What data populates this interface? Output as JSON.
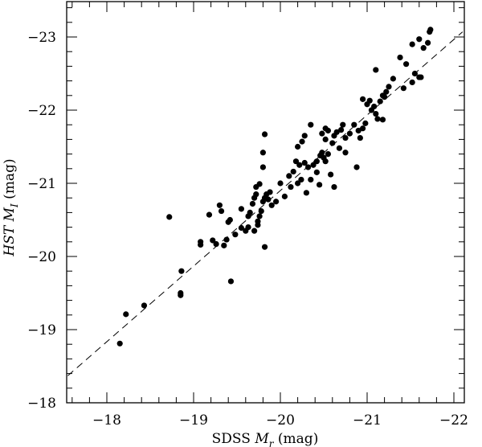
{
  "chart_data": {
    "type": "scatter",
    "title": "",
    "xlabel": "SDSS M_r (mag)",
    "xlabel_parts": {
      "prefix": "SDSS ",
      "var": "M",
      "sub": "r",
      "suffix": " (mag)"
    },
    "ylabel": "HST M_I (mag)",
    "ylabel_parts": {
      "prefix": "HST",
      "var": " M",
      "sub": "I",
      "suffix": " (mag)"
    },
    "xlim": [
      -17.55,
      -22.1
    ],
    "ylim": [
      -18.0,
      -23.48
    ],
    "x_ticks": [
      -18,
      -19,
      -20,
      -21,
      -22
    ],
    "x_tick_labels": [
      "−18",
      "−19",
      "−20",
      "−21",
      "−22"
    ],
    "y_ticks": [
      -18,
      -19,
      -20,
      -21,
      -22,
      -23
    ],
    "y_tick_labels": [
      "−18",
      "−19",
      "−20",
      "−21",
      "−22",
      "−23"
    ],
    "x_minor_step": 0.2,
    "y_minor_step": 0.2,
    "grid": false,
    "legend": null,
    "reference_line": {
      "style": "dashed",
      "description": "one-to-one relation",
      "x": [
        -17.55,
        -22.1
      ],
      "y": [
        -18.37,
        -23.07
      ]
    },
    "marker": {
      "shape": "circle",
      "color": "#000000",
      "radius": 3.6
    },
    "points": [
      [
        -18.15,
        -18.81
      ],
      [
        -18.22,
        -19.21
      ],
      [
        -18.43,
        -19.33
      ],
      [
        -18.85,
        -19.47
      ],
      [
        -18.85,
        -19.5
      ],
      [
        -18.86,
        -19.8
      ],
      [
        -18.72,
        -20.54
      ],
      [
        -19.43,
        -19.66
      ],
      [
        -19.82,
        -20.13
      ],
      [
        -19.08,
        -20.16
      ],
      [
        -19.08,
        -20.2
      ],
      [
        -19.22,
        -20.22
      ],
      [
        -19.26,
        -20.17
      ],
      [
        -19.35,
        -20.15
      ],
      [
        -19.38,
        -20.23
      ],
      [
        -19.4,
        -20.47
      ],
      [
        -19.42,
        -20.5
      ],
      [
        -19.3,
        -20.7
      ],
      [
        -19.32,
        -20.62
      ],
      [
        -19.18,
        -20.57
      ],
      [
        -19.48,
        -20.3
      ],
      [
        -19.55,
        -20.39
      ],
      [
        -19.6,
        -20.35
      ],
      [
        -19.63,
        -20.4
      ],
      [
        -19.7,
        -20.35
      ],
      [
        -19.74,
        -20.43
      ],
      [
        -19.55,
        -20.65
      ],
      [
        -19.63,
        -20.55
      ],
      [
        -19.65,
        -20.6
      ],
      [
        -19.68,
        -20.72
      ],
      [
        -19.7,
        -20.8
      ],
      [
        -19.72,
        -20.85
      ],
      [
        -19.74,
        -20.48
      ],
      [
        -19.76,
        -20.55
      ],
      [
        -19.78,
        -20.62
      ],
      [
        -19.8,
        -20.75
      ],
      [
        -19.82,
        -20.8
      ],
      [
        -19.84,
        -20.85
      ],
      [
        -19.86,
        -20.78
      ],
      [
        -19.88,
        -20.88
      ],
      [
        -19.9,
        -20.7
      ],
      [
        -19.72,
        -20.95
      ],
      [
        -19.76,
        -20.99
      ],
      [
        -19.8,
        -21.22
      ],
      [
        -19.8,
        -21.42
      ],
      [
        -19.82,
        -21.67
      ],
      [
        -19.95,
        -20.75
      ],
      [
        -20.0,
        -21.0
      ],
      [
        -20.05,
        -20.82
      ],
      [
        -20.1,
        -21.1
      ],
      [
        -20.15,
        -21.16
      ],
      [
        -20.18,
        -21.3
      ],
      [
        -20.22,
        -21.25
      ],
      [
        -20.28,
        -21.28
      ],
      [
        -20.32,
        -21.22
      ],
      [
        -20.2,
        -21.5
      ],
      [
        -20.25,
        -21.57
      ],
      [
        -20.28,
        -21.65
      ],
      [
        -20.35,
        -21.8
      ],
      [
        -20.12,
        -20.95
      ],
      [
        -20.2,
        -21.0
      ],
      [
        -20.24,
        -21.05
      ],
      [
        -20.3,
        -20.87
      ],
      [
        -20.35,
        -21.05
      ],
      [
        -20.38,
        -21.25
      ],
      [
        -20.42,
        -21.3
      ],
      [
        -20.46,
        -21.38
      ],
      [
        -20.48,
        -21.42
      ],
      [
        -20.5,
        -21.35
      ],
      [
        -20.52,
        -21.3
      ],
      [
        -20.55,
        -21.4
      ],
      [
        -20.42,
        -21.15
      ],
      [
        -20.45,
        -20.98
      ],
      [
        -20.58,
        -21.12
      ],
      [
        -20.52,
        -21.6
      ],
      [
        -20.48,
        -21.68
      ],
      [
        -20.52,
        -21.75
      ],
      [
        -20.55,
        -21.72
      ],
      [
        -20.6,
        -21.55
      ],
      [
        -20.62,
        -21.65
      ],
      [
        -20.65,
        -21.7
      ],
      [
        -20.7,
        -21.73
      ],
      [
        -20.72,
        -21.8
      ],
      [
        -20.68,
        -21.48
      ],
      [
        -20.75,
        -21.42
      ],
      [
        -20.62,
        -20.95
      ],
      [
        -20.75,
        -21.62
      ],
      [
        -20.8,
        -21.68
      ],
      [
        -20.85,
        -21.8
      ],
      [
        -20.9,
        -21.72
      ],
      [
        -20.92,
        -21.62
      ],
      [
        -20.88,
        -21.22
      ],
      [
        -20.95,
        -21.75
      ],
      [
        -20.98,
        -21.82
      ],
      [
        -21.0,
        -22.08
      ],
      [
        -21.03,
        -22.13
      ],
      [
        -20.95,
        -22.15
      ],
      [
        -21.05,
        -22.0
      ],
      [
        -21.08,
        -22.05
      ],
      [
        -21.1,
        -21.95
      ],
      [
        -21.12,
        -21.88
      ],
      [
        -21.15,
        -22.12
      ],
      [
        -21.18,
        -22.2
      ],
      [
        -21.2,
        -22.18
      ],
      [
        -21.22,
        -22.25
      ],
      [
        -21.25,
        -22.32
      ],
      [
        -21.18,
        -21.87
      ],
      [
        -21.1,
        -22.55
      ],
      [
        -21.3,
        -22.43
      ],
      [
        -21.38,
        -22.72
      ],
      [
        -21.45,
        -22.63
      ],
      [
        -21.42,
        -22.3
      ],
      [
        -21.52,
        -22.38
      ],
      [
        -21.55,
        -22.5
      ],
      [
        -21.6,
        -22.45
      ],
      [
        -21.62,
        -22.45
      ],
      [
        -21.52,
        -22.9
      ],
      [
        -21.6,
        -22.97
      ],
      [
        -21.65,
        -22.85
      ],
      [
        -21.72,
        -23.07
      ],
      [
        -21.73,
        -23.1
      ],
      [
        -21.7,
        -22.92
      ]
    ]
  },
  "axes": {
    "x_title_prefix": "SDSS ",
    "x_title_var": "M",
    "x_title_sub": "r",
    "x_title_suffix": " (mag)",
    "y_title_prefix": "HST",
    "y_title_var": " M",
    "y_title_sub": "I",
    "y_title_suffix": " (mag)"
  }
}
